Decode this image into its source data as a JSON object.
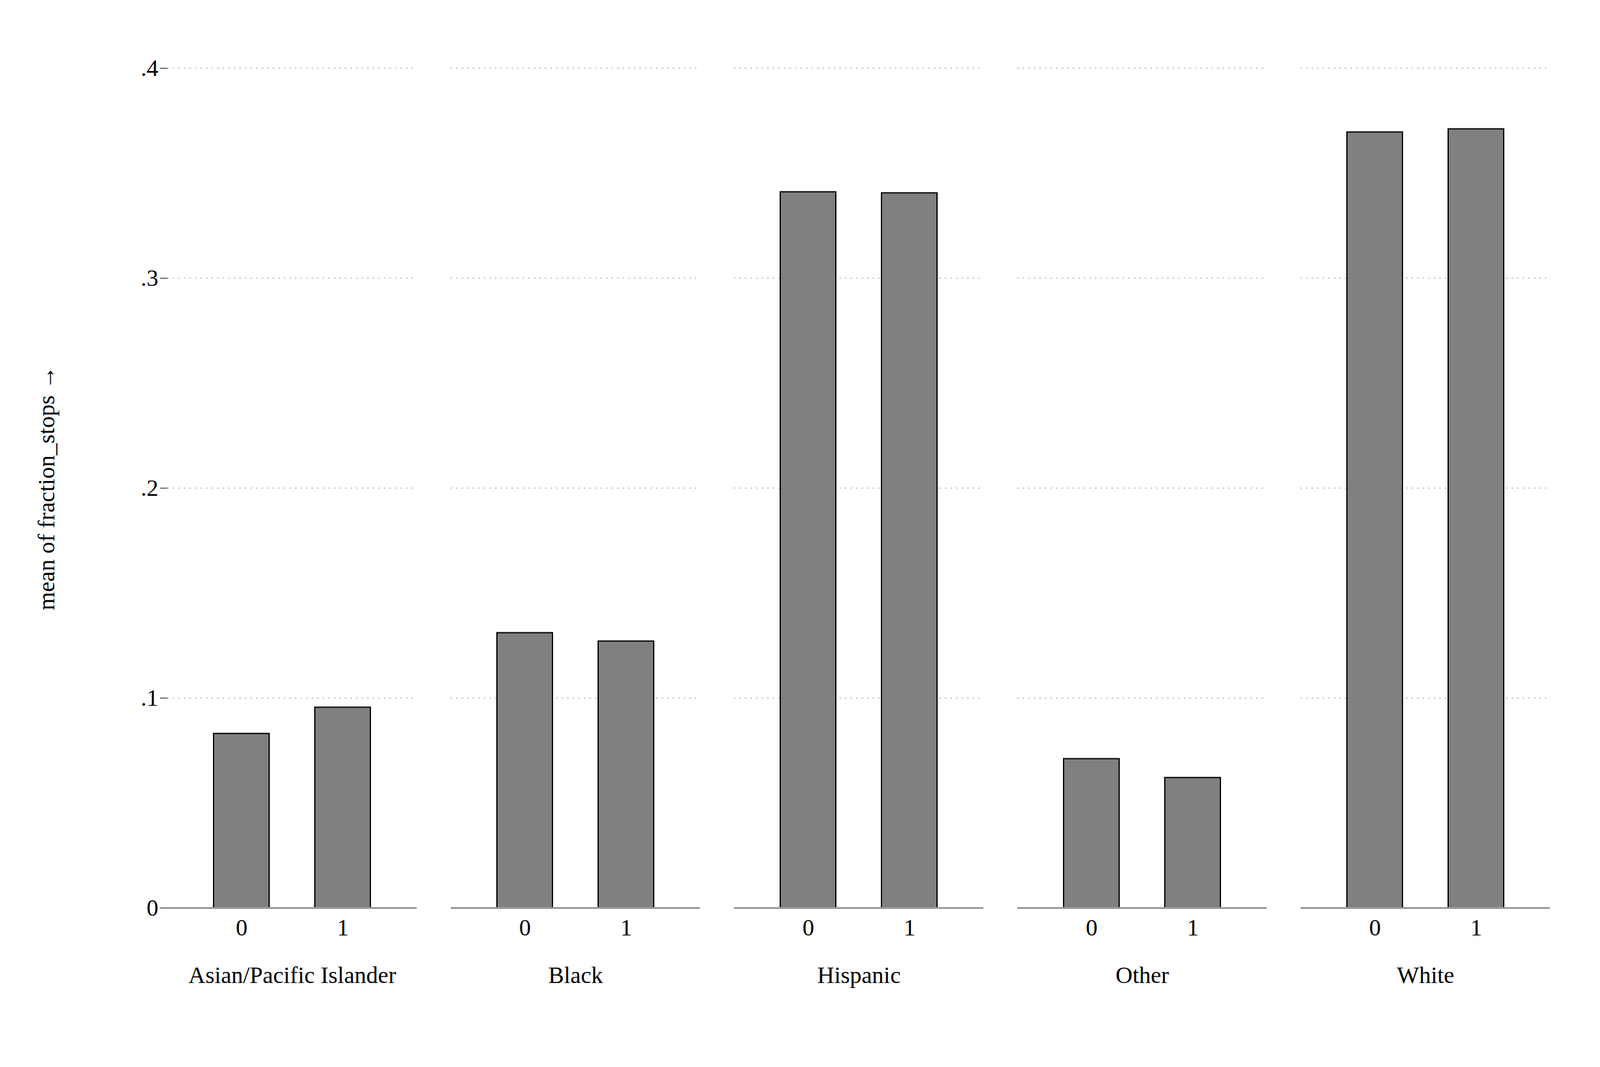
{
  "chart_data": {
    "type": "bar",
    "y_label": "mean of fraction_stops",
    "categories": [
      "Asian/Pacific Islander",
      "Black",
      "Hispanic",
      "Other",
      "White"
    ],
    "series": [
      {
        "name": "0",
        "color": "#808080",
        "values": [
          0.083,
          0.131,
          0.341,
          0.071,
          0.3695
        ]
      },
      {
        "name": "1",
        "color": "#808080",
        "values": [
          0.0955,
          0.127,
          0.3405,
          0.062,
          0.371
        ]
      }
    ],
    "ylim": [
      0,
      0.4
    ],
    "yticks": [
      0,
      {
        "value": 0.1,
        "label": ".1"
      },
      {
        "value": 0.2,
        "label": ".2"
      },
      {
        "value": 0.3,
        "label": ".3"
      },
      {
        "value": 0.4,
        "label": ".4"
      }
    ],
    "grid": true
  }
}
